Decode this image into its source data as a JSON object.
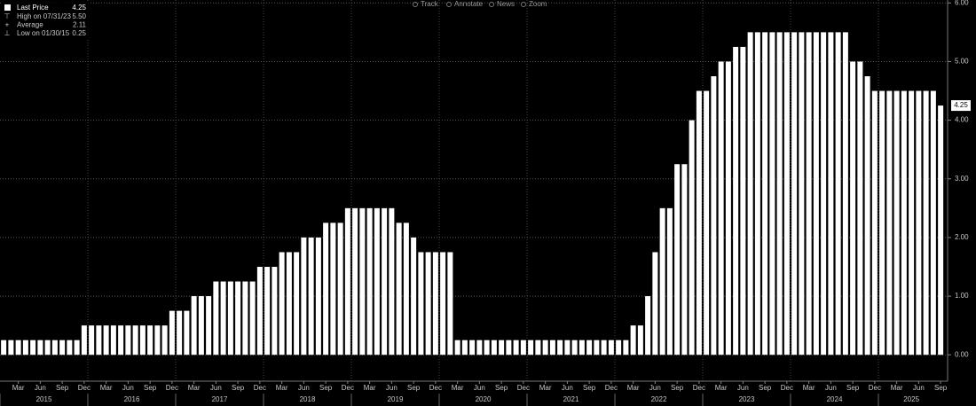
{
  "chart_data": {
    "type": "bar",
    "toolbar": [
      "Track",
      "Annotate",
      "News",
      "Zoom"
    ],
    "legend_stats": [
      {
        "label": "High on 07/31/23",
        "value": "5.50"
      },
      {
        "label": "Average",
        "value": "2.11"
      },
      {
        "label": "Low on 01/30/15",
        "value": "0.25"
      }
    ],
    "years": [
      "2015",
      "2016",
      "2017",
      "2018",
      "2019",
      "2020",
      "2021",
      "2022",
      "2023",
      "2024",
      "2025"
    ],
    "categories": [
      null,
      null,
      "Mar",
      null,
      null,
      "Jun",
      null,
      null,
      "Sep",
      null,
      null,
      "Dec",
      null,
      null,
      "Mar",
      null,
      null,
      "Jun",
      null,
      null,
      "Sep",
      null,
      null,
      "Dec",
      null,
      null,
      "Mar",
      null,
      null,
      "Jun",
      null,
      null,
      "Sep",
      null,
      null,
      "Dec",
      null,
      null,
      "Mar",
      null,
      null,
      "Jun",
      null,
      null,
      "Sep",
      null,
      null,
      "Dec",
      null,
      null,
      "Mar",
      null,
      null,
      "Jun",
      null,
      null,
      "Sep",
      null,
      null,
      "Dec",
      null,
      null,
      "Mar",
      null,
      null,
      "Jun",
      null,
      null,
      "Sep",
      null,
      null,
      "Dec",
      null,
      null,
      "Mar",
      null,
      null,
      "Jun",
      null,
      null,
      "Sep",
      null,
      null,
      "Dec",
      null,
      null,
      "Mar",
      null,
      null,
      "Jun",
      null,
      null,
      "Sep",
      null,
      null,
      "Dec",
      null,
      null,
      "Mar",
      null,
      null,
      "Jun",
      null,
      null,
      "Sep",
      null,
      null,
      "Dec",
      null,
      null,
      "Mar",
      null,
      null,
      "Jun",
      null,
      null,
      "Sep",
      null,
      null,
      "Dec",
      null,
      null,
      "Mar",
      null,
      null,
      "Jun",
      null,
      null,
      "Sep"
    ],
    "series": [
      {
        "name": "Last Price",
        "color": "#ffffff",
        "legend_value": "4.25",
        "values": [
          0.25,
          0.25,
          0.25,
          0.25,
          0.25,
          0.25,
          0.25,
          0.25,
          0.25,
          0.25,
          0.25,
          0.5,
          0.5,
          0.5,
          0.5,
          0.5,
          0.5,
          0.5,
          0.5,
          0.5,
          0.5,
          0.5,
          0.5,
          0.75,
          0.75,
          0.75,
          1,
          1,
          1,
          1.25,
          1.25,
          1.25,
          1.25,
          1.25,
          1.25,
          1.5,
          1.5,
          1.5,
          1.75,
          1.75,
          1.75,
          2,
          2,
          2,
          2.25,
          2.25,
          2.25,
          2.5,
          2.5,
          2.5,
          2.5,
          2.5,
          2.5,
          2.5,
          2.25,
          2.25,
          2,
          1.75,
          1.75,
          1.75,
          1.75,
          1.75,
          0.25,
          0.25,
          0.25,
          0.25,
          0.25,
          0.25,
          0.25,
          0.25,
          0.25,
          0.25,
          0.25,
          0.25,
          0.25,
          0.25,
          0.25,
          0.25,
          0.25,
          0.25,
          0.25,
          0.25,
          0.25,
          0.25,
          0.25,
          0.25,
          0.5,
          0.5,
          1,
          1.75,
          2.5,
          2.5,
          3.25,
          3.25,
          4,
          4.5,
          4.5,
          4.75,
          5,
          5,
          5.25,
          5.25,
          5.5,
          5.5,
          5.5,
          5.5,
          5.5,
          5.5,
          5.5,
          5.5,
          5.5,
          5.5,
          5.5,
          5.5,
          5.5,
          5.5,
          5,
          5,
          4.75,
          4.5,
          4.5,
          4.5,
          4.5,
          4.5,
          4.5,
          4.5,
          4.5,
          4.5,
          4.25
        ]
      }
    ],
    "ylim": [
      -0.45,
      6.05
    ],
    "yticks": [
      {
        "value": 0,
        "label": "0.00"
      },
      {
        "value": 1,
        "label": "1.00"
      },
      {
        "value": 2,
        "label": "2.00"
      },
      {
        "value": 3,
        "label": "3.00"
      },
      {
        "value": 4,
        "label": "4.00"
      },
      {
        "value": 5,
        "label": "5.00"
      },
      {
        "value": 6,
        "label": "6.00"
      }
    ],
    "grid": true
  }
}
